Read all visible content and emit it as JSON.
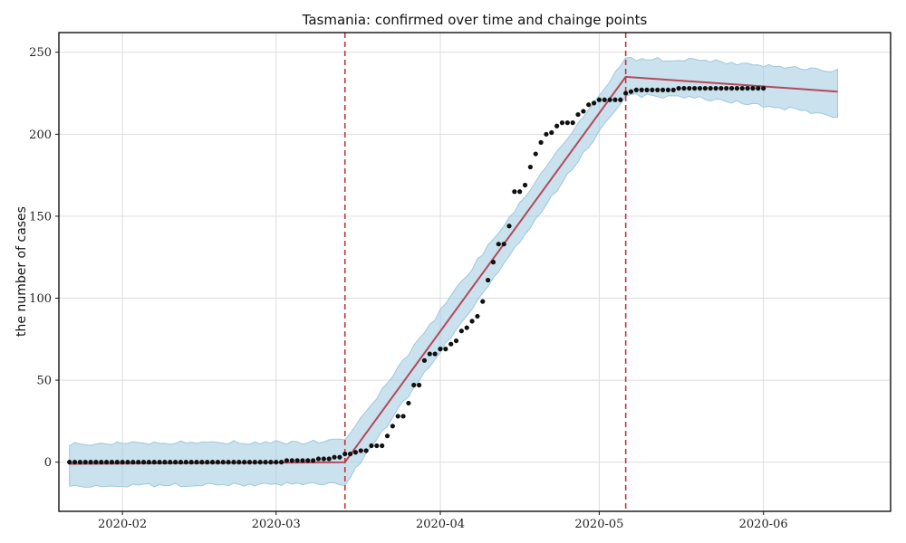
{
  "chart_data": {
    "type": "line",
    "title": "Tasmania: confirmed over time and chainge points",
    "xlabel": "",
    "ylabel": "the number of cases",
    "x_range": [
      "2020-01-20",
      "2020-06-25"
    ],
    "ylim": [
      -30,
      262
    ],
    "y_ticks": [
      0,
      50,
      100,
      150,
      200,
      250
    ],
    "x_ticks": [
      "2020-02-01",
      "2020-03-01",
      "2020-04-01",
      "2020-05-01",
      "2020-06-01"
    ],
    "x_tick_labels": [
      "2020-02",
      "2020-03",
      "2020-04",
      "2020-05",
      "2020-06"
    ],
    "grid": true,
    "colors": {
      "observed": "#111111",
      "trend": "#b5485a",
      "interval": "#9fc8e0",
      "changepoint": "#c0393b",
      "grid": "#dddddd"
    },
    "change_points": [
      "2020-03-14",
      "2020-05-06"
    ],
    "series": [
      {
        "kind": "scatter",
        "x": [
          "2020-01-22",
          "2020-01-23",
          "2020-01-24",
          "2020-01-25",
          "2020-01-26",
          "2020-01-27",
          "2020-01-28",
          "2020-01-29",
          "2020-01-30",
          "2020-01-31",
          "2020-02-01",
          "2020-02-02",
          "2020-02-03",
          "2020-02-04",
          "2020-02-05",
          "2020-02-06",
          "2020-02-07",
          "2020-02-08",
          "2020-02-09",
          "2020-02-10",
          "2020-02-11",
          "2020-02-12",
          "2020-02-13",
          "2020-02-14",
          "2020-02-15",
          "2020-02-16",
          "2020-02-17",
          "2020-02-18",
          "2020-02-19",
          "2020-02-20",
          "2020-02-21",
          "2020-02-22",
          "2020-02-23",
          "2020-02-24",
          "2020-02-25",
          "2020-02-26",
          "2020-02-27",
          "2020-02-28",
          "2020-02-29",
          "2020-03-01",
          "2020-03-02",
          "2020-03-03",
          "2020-03-04",
          "2020-03-05",
          "2020-03-06",
          "2020-03-07",
          "2020-03-08",
          "2020-03-09",
          "2020-03-10",
          "2020-03-11",
          "2020-03-12",
          "2020-03-13",
          "2020-03-14",
          "2020-03-15",
          "2020-03-16",
          "2020-03-17",
          "2020-03-18",
          "2020-03-19",
          "2020-03-20",
          "2020-03-21",
          "2020-03-22",
          "2020-03-23",
          "2020-03-24",
          "2020-03-25",
          "2020-03-26",
          "2020-03-27",
          "2020-03-28",
          "2020-03-29",
          "2020-03-30",
          "2020-03-31",
          "2020-04-01",
          "2020-04-02",
          "2020-04-03",
          "2020-04-04",
          "2020-04-05",
          "2020-04-06",
          "2020-04-07",
          "2020-04-08",
          "2020-04-09",
          "2020-04-10",
          "2020-04-11",
          "2020-04-12",
          "2020-04-13",
          "2020-04-14",
          "2020-04-15",
          "2020-04-16",
          "2020-04-17",
          "2020-04-18",
          "2020-04-19",
          "2020-04-20",
          "2020-04-21",
          "2020-04-22",
          "2020-04-23",
          "2020-04-24",
          "2020-04-25",
          "2020-04-26",
          "2020-04-27",
          "2020-04-28",
          "2020-04-29",
          "2020-04-30",
          "2020-05-01",
          "2020-05-02",
          "2020-05-03",
          "2020-05-04",
          "2020-05-05",
          "2020-05-06",
          "2020-05-07",
          "2020-05-08",
          "2020-05-09",
          "2020-05-10",
          "2020-05-11",
          "2020-05-12",
          "2020-05-13",
          "2020-05-14",
          "2020-05-15",
          "2020-05-16",
          "2020-05-17",
          "2020-05-18",
          "2020-05-19",
          "2020-05-20",
          "2020-05-21",
          "2020-05-22",
          "2020-05-23",
          "2020-05-24",
          "2020-05-25",
          "2020-05-26",
          "2020-05-27",
          "2020-05-28",
          "2020-05-29",
          "2020-05-30",
          "2020-05-31",
          "2020-06-01"
        ],
        "y": [
          0,
          0,
          0,
          0,
          0,
          0,
          0,
          0,
          0,
          0,
          0,
          0,
          0,
          0,
          0,
          0,
          0,
          0,
          0,
          0,
          0,
          0,
          0,
          0,
          0,
          0,
          0,
          0,
          0,
          0,
          0,
          0,
          0,
          0,
          0,
          0,
          0,
          0,
          0,
          0,
          0,
          1,
          1,
          1,
          1,
          1,
          1,
          2,
          2,
          2,
          3,
          3,
          5,
          5,
          6,
          7,
          7,
          10,
          10,
          10,
          16,
          22,
          28,
          28,
          36,
          47,
          47,
          62,
          66,
          66,
          69,
          69,
          72,
          74,
          80,
          82,
          86,
          89,
          98,
          111,
          122,
          133,
          133,
          144,
          165,
          165,
          169,
          180,
          188,
          195,
          200,
          201,
          205,
          207,
          207,
          207,
          212,
          214,
          218,
          219,
          221,
          221,
          221,
          221,
          221,
          225,
          226,
          227,
          227,
          227,
          227,
          227,
          227,
          227,
          227,
          228,
          228,
          228,
          228,
          228,
          228,
          228,
          228,
          228,
          228,
          228,
          228,
          228,
          228,
          228,
          228,
          228
        ]
      },
      {
        "kind": "trend",
        "x": [
          "2020-01-22",
          "2020-03-14",
          "2020-05-06",
          "2020-06-15"
        ],
        "y": [
          -1,
          0,
          235,
          226
        ]
      },
      {
        "kind": "interval",
        "x": [
          "2020-01-22",
          "2020-02-05",
          "2020-02-20",
          "2020-03-05",
          "2020-03-14",
          "2020-05-06",
          "2020-05-20",
          "2020-06-05",
          "2020-06-15"
        ],
        "upper": [
          11,
          12,
          12,
          12,
          13,
          246,
          245,
          241,
          239
        ],
        "lower": [
          -15,
          -14,
          -14,
          -13,
          -13,
          224,
          222,
          216,
          210
        ]
      }
    ]
  }
}
